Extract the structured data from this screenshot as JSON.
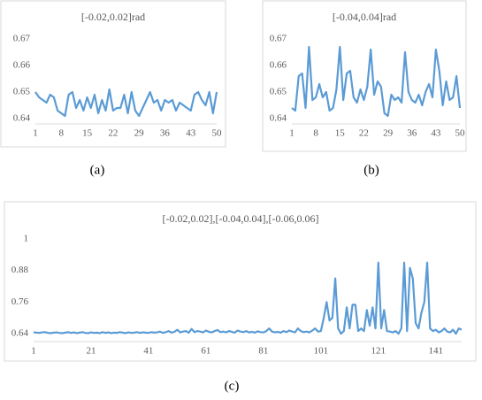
{
  "chart_data": [
    {
      "type": "line",
      "title": "[-0.02,0.02]rad",
      "caption": "(a)",
      "x": [
        1,
        2,
        3,
        4,
        5,
        6,
        7,
        8,
        9,
        10,
        11,
        12,
        13,
        14,
        15,
        16,
        17,
        18,
        19,
        20,
        21,
        22,
        23,
        24,
        25,
        26,
        27,
        28,
        29,
        30,
        31,
        32,
        33,
        34,
        35,
        36,
        37,
        38,
        39,
        40,
        41,
        42,
        43,
        44,
        45,
        46,
        47,
        48,
        49,
        50
      ],
      "values": [
        0.65,
        0.648,
        0.647,
        0.646,
        0.649,
        0.648,
        0.643,
        0.642,
        0.641,
        0.649,
        0.65,
        0.644,
        0.647,
        0.643,
        0.648,
        0.644,
        0.649,
        0.642,
        0.647,
        0.643,
        0.651,
        0.643,
        0.644,
        0.644,
        0.649,
        0.642,
        0.65,
        0.643,
        0.641,
        0.644,
        0.647,
        0.65,
        0.646,
        0.647,
        0.643,
        0.647,
        0.646,
        0.647,
        0.643,
        0.646,
        0.645,
        0.644,
        0.643,
        0.649,
        0.65,
        0.647,
        0.645,
        0.65,
        0.642,
        0.65
      ],
      "color": "#5b9bd5",
      "xlim": [
        1,
        50
      ],
      "xticks": [
        1,
        8,
        15,
        22,
        29,
        36,
        43,
        50
      ],
      "ylim": [
        0.638,
        0.67
      ],
      "yticks": [
        {
          "value": 0.64,
          "label": "0.64"
        },
        {
          "value": 0.65,
          "label": "0.65"
        },
        {
          "value": 0.66,
          "label": "0.66"
        },
        {
          "value": 0.67,
          "label": "0.67"
        }
      ],
      "grid": false
    },
    {
      "type": "line",
      "title": "[-0.04,0.04]rad",
      "caption": "(b)",
      "x": [
        1,
        2,
        3,
        4,
        5,
        6,
        7,
        8,
        9,
        10,
        11,
        12,
        13,
        14,
        15,
        16,
        17,
        18,
        19,
        20,
        21,
        22,
        23,
        24,
        25,
        26,
        27,
        28,
        29,
        30,
        31,
        32,
        33,
        34,
        35,
        36,
        37,
        38,
        39,
        40,
        41,
        42,
        43,
        44,
        45,
        46,
        47,
        48,
        49,
        50
      ],
      "values": [
        0.644,
        0.643,
        0.656,
        0.657,
        0.644,
        0.667,
        0.647,
        0.648,
        0.653,
        0.648,
        0.65,
        0.643,
        0.644,
        0.651,
        0.667,
        0.647,
        0.657,
        0.658,
        0.648,
        0.646,
        0.651,
        0.647,
        0.652,
        0.666,
        0.649,
        0.654,
        0.652,
        0.642,
        0.641,
        0.649,
        0.647,
        0.648,
        0.646,
        0.665,
        0.65,
        0.647,
        0.646,
        0.649,
        0.645,
        0.65,
        0.653,
        0.648,
        0.666,
        0.658,
        0.645,
        0.654,
        0.647,
        0.648,
        0.656,
        0.644
      ],
      "color": "#5b9bd5",
      "xlim": [
        1,
        50
      ],
      "xticks": [
        1,
        8,
        15,
        22,
        29,
        36,
        43,
        50
      ],
      "ylim": [
        0.638,
        0.67
      ],
      "yticks": [
        {
          "value": 0.64,
          "label": "0.64"
        },
        {
          "value": 0.65,
          "label": "0.65"
        },
        {
          "value": 0.66,
          "label": "0.66"
        },
        {
          "value": 0.67,
          "label": "0.67"
        }
      ],
      "grid": false
    },
    {
      "type": "line",
      "title": "[-0.02,0.02],[-0.04,0.04],[-0.06,0.06]",
      "caption": "(c)",
      "x": [
        1,
        2,
        3,
        4,
        5,
        6,
        7,
        8,
        9,
        10,
        11,
        12,
        13,
        14,
        15,
        16,
        17,
        18,
        19,
        20,
        21,
        22,
        23,
        24,
        25,
        26,
        27,
        28,
        29,
        30,
        31,
        32,
        33,
        34,
        35,
        36,
        37,
        38,
        39,
        40,
        41,
        42,
        43,
        44,
        45,
        46,
        47,
        48,
        49,
        50,
        51,
        52,
        53,
        54,
        55,
        56,
        57,
        58,
        59,
        60,
        61,
        62,
        63,
        64,
        65,
        66,
        67,
        68,
        69,
        70,
        71,
        72,
        73,
        74,
        75,
        76,
        77,
        78,
        79,
        80,
        81,
        82,
        83,
        84,
        85,
        86,
        87,
        88,
        89,
        90,
        91,
        92,
        93,
        94,
        95,
        96,
        97,
        98,
        99,
        100,
        101,
        102,
        103,
        104,
        105,
        106,
        107,
        108,
        109,
        110,
        111,
        112,
        113,
        114,
        115,
        116,
        117,
        118,
        119,
        120,
        121,
        122,
        123,
        124,
        125,
        126,
        127,
        128,
        129,
        130,
        131,
        132,
        133,
        134,
        135,
        136,
        137,
        138,
        139,
        140,
        141,
        142,
        143,
        144,
        145,
        146,
        147,
        148,
        149,
        150
      ],
      "values": [
        0.645,
        0.644,
        0.643,
        0.645,
        0.646,
        0.643,
        0.642,
        0.644,
        0.645,
        0.643,
        0.642,
        0.644,
        0.646,
        0.643,
        0.645,
        0.642,
        0.644,
        0.646,
        0.643,
        0.642,
        0.645,
        0.643,
        0.644,
        0.642,
        0.646,
        0.643,
        0.645,
        0.642,
        0.644,
        0.643,
        0.646,
        0.644,
        0.642,
        0.645,
        0.643,
        0.644,
        0.646,
        0.643,
        0.645,
        0.644,
        0.643,
        0.646,
        0.644,
        0.645,
        0.648,
        0.643,
        0.646,
        0.65,
        0.644,
        0.647,
        0.655,
        0.645,
        0.648,
        0.65,
        0.644,
        0.658,
        0.646,
        0.65,
        0.648,
        0.645,
        0.652,
        0.647,
        0.645,
        0.65,
        0.654,
        0.646,
        0.648,
        0.645,
        0.65,
        0.647,
        0.644,
        0.652,
        0.648,
        0.646,
        0.65,
        0.645,
        0.647,
        0.644,
        0.649,
        0.646,
        0.645,
        0.65,
        0.66,
        0.648,
        0.645,
        0.647,
        0.644,
        0.65,
        0.646,
        0.652,
        0.648,
        0.645,
        0.66,
        0.65,
        0.646,
        0.648,
        0.645,
        0.652,
        0.66,
        0.648,
        0.65,
        0.7,
        0.76,
        0.69,
        0.7,
        0.85,
        0.66,
        0.64,
        0.65,
        0.74,
        0.66,
        0.75,
        0.75,
        0.65,
        0.66,
        0.65,
        0.73,
        0.67,
        0.74,
        0.66,
        0.91,
        0.66,
        0.73,
        0.65,
        0.648,
        0.645,
        0.65,
        0.64,
        0.66,
        0.91,
        0.65,
        0.89,
        0.85,
        0.68,
        0.66,
        0.72,
        0.76,
        0.91,
        0.66,
        0.65,
        0.655,
        0.645,
        0.65,
        0.66,
        0.648,
        0.645,
        0.655,
        0.64,
        0.66,
        0.655
      ],
      "color": "#5b9bd5",
      "xlim": [
        1,
        150
      ],
      "xticks": [
        1,
        21,
        41,
        61,
        81,
        101,
        121,
        141
      ],
      "ylim": [
        0.61,
        1
      ],
      "yticks": [
        {
          "value": 0.64,
          "label": "0.64"
        },
        {
          "value": 0.76,
          "label": "0.76"
        },
        {
          "value": 0.88,
          "label": "0.88"
        },
        1
      ],
      "grid": false
    }
  ]
}
